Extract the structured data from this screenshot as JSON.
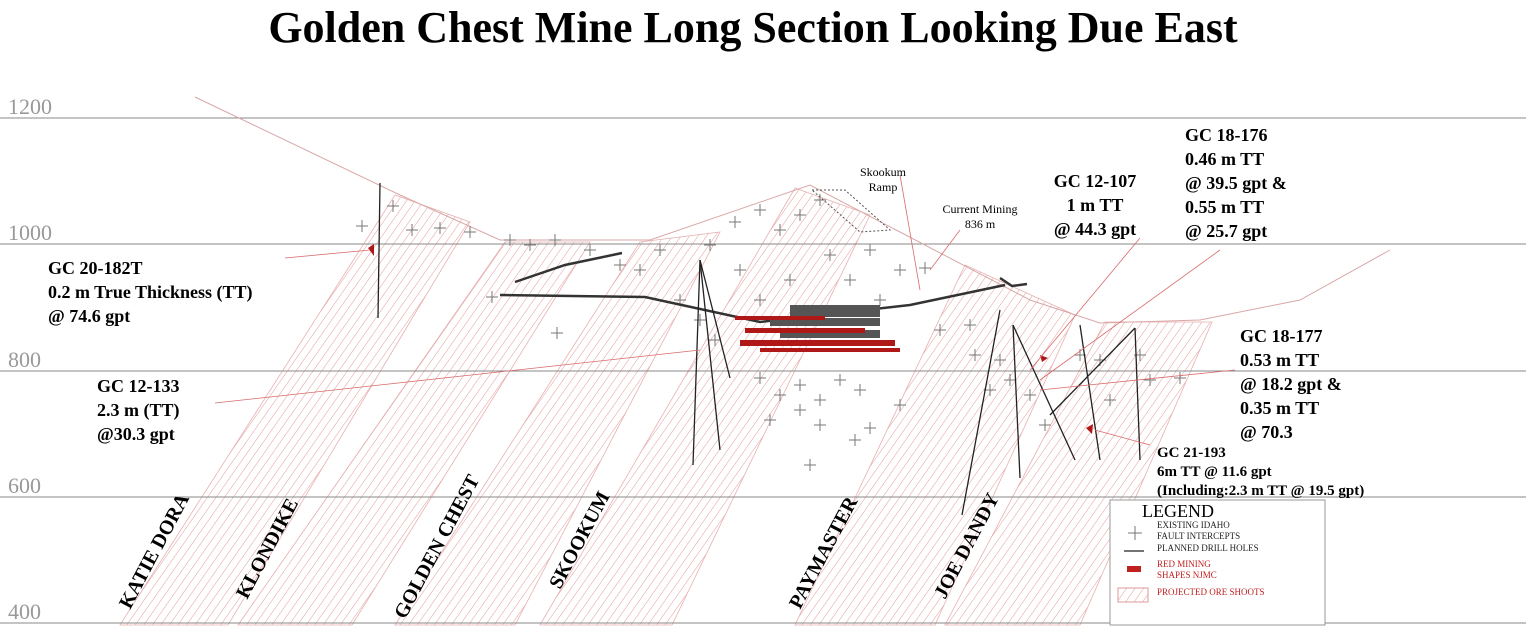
{
  "title": "Golden Chest Mine Long Section Looking Due East",
  "elevation_labels": [
    "1200",
    "1000",
    "800",
    "600",
    "400"
  ],
  "ore_shoot_labels": [
    "KATIE DORA",
    "KLONDIKE",
    "GOLDEN CHEST",
    "SKOOKUM",
    "PAYMASTER",
    "JOE DANDY"
  ],
  "site_labels": [
    {
      "lines": [
        "Skookum",
        "Ramp"
      ]
    },
    {
      "lines": [
        "Current Mining",
        "836 m"
      ]
    }
  ],
  "annotations": [
    {
      "lines": [
        "GC 20-182T",
        "0.2 m True Thickness (TT)",
        "@ 74.6 gpt"
      ]
    },
    {
      "lines": [
        "GC 12-133",
        "2.3 m (TT)",
        "@30.3 gpt"
      ]
    },
    {
      "lines": [
        "GC 12-107",
        "1 m TT",
        "@ 44.3 gpt"
      ]
    },
    {
      "lines": [
        "GC 18-176",
        "0.46 m TT",
        "@ 39.5 gpt &",
        "0.55 m TT",
        "@ 25.7 gpt"
      ]
    },
    {
      "lines": [
        "GC 18-177",
        "0.53 m TT",
        "@ 18.2 gpt &",
        "0.35 m TT",
        "@ 70.3"
      ]
    },
    {
      "lines": [
        "GC 21-193",
        "6m TT @ 11.6 gpt",
        "(Including:2.3 m TT @ 19.5 gpt)"
      ]
    }
  ],
  "legend": {
    "title": "LEGEND",
    "items": [
      {
        "lines": [
          "EXISTING IDAHO",
          "FAULT INTERCEPTS"
        ]
      },
      {
        "lines": [
          "PLANNED DRILL HOLES"
        ]
      },
      {
        "lines": [
          "RED MINING",
          "SHAPES NJMC"
        ]
      },
      {
        "lines": [
          "PROJECTED ORE SHOOTS"
        ]
      }
    ]
  }
}
